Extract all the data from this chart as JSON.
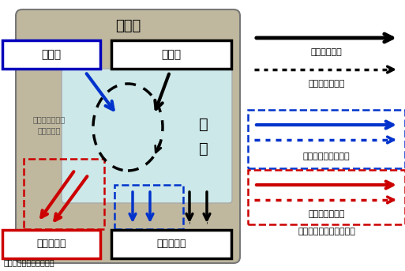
{
  "bg_color": "#bfb89e",
  "inner_bg_color": "#cce8e8",
  "fig_bg": "#ffffff",
  "title_text": "国　内",
  "gaijyu_text": "外　需",
  "naijyu_text": "内　需",
  "sangyo_text": "産\n業",
  "kokugai_text": "国外流出額",
  "kokunai_text": "国内生産額",
  "sangyorenkan_text": "産業連関による\n波及の循環",
  "source_text": "資料：経済産業省作成。",
  "legend_solid_label": "直接の取引額",
  "legend_dashed_label": "間接の波及効果",
  "legend_blue_label": "「外需」による誘発",
  "legend_red_label": "輸入による流出",
  "legend_balance_label": "収支＝誘発マイナス流出"
}
